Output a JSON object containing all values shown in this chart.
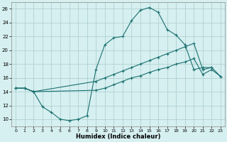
{
  "xlabel": "Humidex (Indice chaleur)",
  "bg_color": "#d6eff0",
  "grid_color": "#aacccc",
  "line_color": "#1a7070",
  "xlim": [
    -0.5,
    23.5
  ],
  "ylim": [
    9,
    27
  ],
  "xticks": [
    0,
    1,
    2,
    3,
    4,
    5,
    6,
    7,
    8,
    9,
    10,
    11,
    12,
    13,
    14,
    15,
    16,
    17,
    18,
    19,
    20,
    21,
    22,
    23
  ],
  "yticks": [
    10,
    12,
    14,
    16,
    18,
    20,
    22,
    24,
    26
  ],
  "line_upper": {
    "x": [
      0,
      1,
      2,
      3,
      4,
      5,
      6,
      7,
      8,
      9,
      10,
      11,
      12,
      13,
      14,
      15,
      16,
      17,
      18,
      19,
      20,
      21,
      22
    ],
    "y": [
      14.5,
      14.5,
      14.0,
      11.8,
      11.0,
      10.0,
      9.8,
      10.0,
      10.5,
      17.2,
      20.8,
      21.8,
      22.0,
      24.3,
      25.8,
      26.2,
      25.5,
      23.0,
      22.2,
      20.8,
      17.2,
      17.5,
      17.5
    ]
  },
  "line_mid": {
    "x": [
      0,
      1,
      2,
      9,
      10,
      11,
      12,
      13,
      14,
      15,
      16,
      17,
      18,
      19,
      20,
      21,
      22,
      23
    ],
    "y": [
      14.5,
      14.5,
      14.0,
      15.5,
      16.0,
      16.5,
      17.0,
      17.5,
      18.0,
      18.5,
      19.0,
      19.5,
      20.0,
      20.5,
      21.0,
      17.2,
      17.5,
      16.2
    ]
  },
  "line_lower": {
    "x": [
      0,
      1,
      2,
      9,
      10,
      11,
      12,
      13,
      14,
      15,
      16,
      17,
      18,
      19,
      20,
      21,
      22,
      23
    ],
    "y": [
      14.5,
      14.5,
      14.0,
      14.2,
      14.5,
      15.0,
      15.5,
      16.0,
      16.3,
      16.8,
      17.2,
      17.5,
      18.0,
      18.3,
      18.8,
      16.5,
      17.2,
      16.2
    ]
  }
}
